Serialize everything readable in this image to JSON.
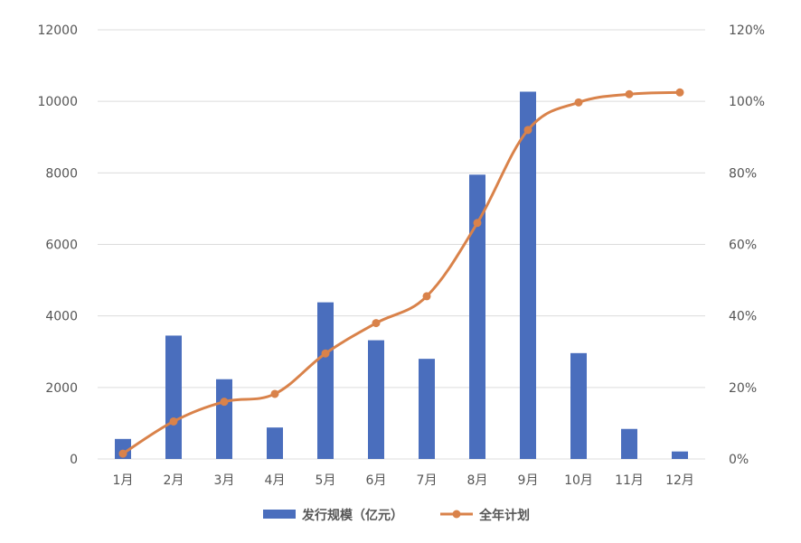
{
  "chart_data": {
    "type": "bar",
    "categories": [
      "1月",
      "2月",
      "3月",
      "4月",
      "5月",
      "6月",
      "7月",
      "8月",
      "9月",
      "10月",
      "11月",
      "12月"
    ],
    "series": [
      {
        "name": "发行规模（亿元）",
        "type": "bar",
        "axis": "left",
        "color": "#4a6ebd",
        "values": [
          560,
          3450,
          2230,
          880,
          4380,
          3320,
          2800,
          7950,
          10270,
          2960,
          840,
          210
        ]
      },
      {
        "name": "全年计划",
        "type": "line",
        "axis": "right",
        "color": "#d9824a",
        "values": [
          1.5,
          10.5,
          16,
          18.2,
          29.5,
          38,
          45.5,
          66,
          92,
          99.7,
          102,
          102.5
        ]
      }
    ],
    "yaxis_left": {
      "min": 0,
      "max": 12000,
      "ticks": [
        "0",
        "2000",
        "4000",
        "6000",
        "8000",
        "10000",
        "12000"
      ]
    },
    "yaxis_right": {
      "min": 0,
      "max": 120,
      "ticks": [
        "0%",
        "20%",
        "40%",
        "60%",
        "80%",
        "100%",
        "120%"
      ]
    },
    "grid": true,
    "legend": "bottom"
  }
}
